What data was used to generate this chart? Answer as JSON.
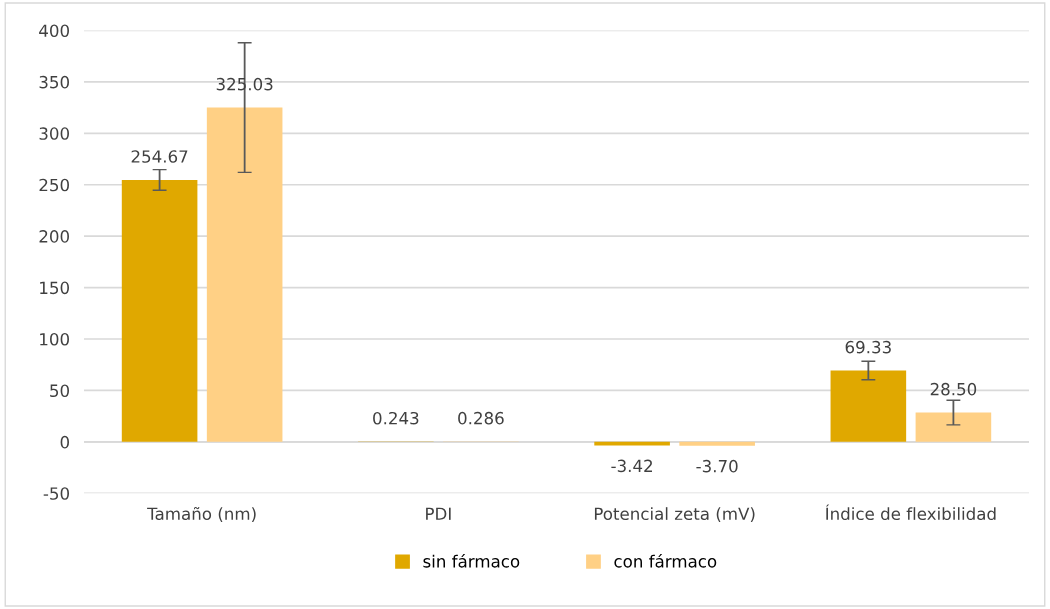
{
  "chart_data": {
    "type": "bar",
    "categories": [
      "Tamaño (nm)",
      "PDI",
      "Potencial zeta (mV)",
      "Índice de flexibilidad"
    ],
    "series": [
      {
        "name": "sin fármaco",
        "color": "#e0a800",
        "values": [
          254.67,
          0.243,
          -3.42,
          69.33
        ],
        "errors": [
          10,
          null,
          null,
          9
        ],
        "value_labels": [
          "254.67",
          "0.243",
          "-3.42",
          "69.33"
        ]
      },
      {
        "name": "con fármaco",
        "color": "#ffd085",
        "values": [
          325.03,
          0.286,
          -3.7,
          28.5
        ],
        "errors": [
          63,
          null,
          null,
          12
        ],
        "value_labels": [
          "325.03",
          "0.286",
          "-3.70",
          "28.50"
        ]
      }
    ],
    "ylim": [
      -50,
      400
    ],
    "yticks": [
      -50,
      0,
      50,
      100,
      150,
      200,
      250,
      300,
      350,
      400
    ],
    "grid": "y",
    "legend": "bottom"
  }
}
